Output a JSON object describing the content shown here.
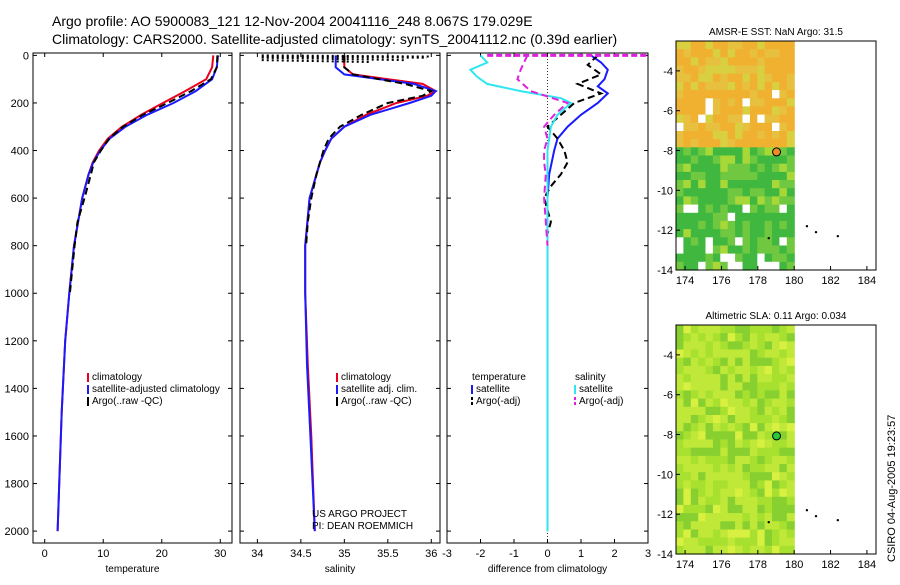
{
  "header": {
    "line1": "Argo profile: AO 5900083_121 12-Nov-2004 20041116_248 8.067S 179.029E",
    "line2": "Climatology: CARS2000. Satellite-adjusted climatology: synTS_20041112.nc (0.39d earlier)"
  },
  "side_label": "CSIRO 04-Aug-2005 19:23:57",
  "credit": {
    "line1": "US ARGO PROJECT",
    "line2": "PI: DEAN ROEMMICH"
  },
  "colors": {
    "red": "#e8001c",
    "blue": "#1a1aff",
    "black": "#000000",
    "cyan": "#2ee6f0",
    "magenta": "#e020e0"
  },
  "chart_data": [
    {
      "type": "line",
      "panel": "temperature",
      "xlabel": "temperature",
      "xlim": [
        -2,
        32
      ],
      "xticks": [
        0,
        10,
        20,
        30
      ],
      "ylim": [
        2050,
        0
      ],
      "yticks": [
        0,
        200,
        400,
        600,
        800,
        1000,
        1200,
        1400,
        1600,
        1800,
        2000
      ],
      "legend": [
        "climatology",
        "satellite-adjusted climatology",
        "Argo(..raw -QC)"
      ],
      "series": [
        {
          "name": "climatology",
          "color": "red",
          "depth": [
            0,
            50,
            100,
            150,
            200,
            250,
            300,
            350,
            400,
            450,
            500,
            600,
            800,
            1000,
            1200,
            1500,
            2000
          ],
          "values": [
            28.8,
            28.6,
            27.6,
            24.0,
            20.2,
            16.5,
            13.2,
            10.8,
            9.3,
            8.2,
            7.5,
            6.4,
            5.0,
            4.2,
            3.5,
            2.9,
            2.2
          ]
        },
        {
          "name": "satellite-adjusted climatology",
          "color": "blue",
          "depth": [
            0,
            50,
            100,
            150,
            200,
            250,
            300,
            350,
            400,
            450,
            500,
            600,
            800,
            1000,
            1200,
            1500,
            2000
          ],
          "values": [
            29.6,
            29.4,
            28.6,
            25.8,
            22.0,
            17.5,
            13.8,
            11.1,
            9.5,
            8.3,
            7.5,
            6.4,
            5.0,
            4.2,
            3.5,
            2.9,
            2.2
          ]
        },
        {
          "name": "Argo(..raw -QC)",
          "color": "black",
          "dash": true,
          "depth": [
            0,
            50,
            100,
            150,
            200,
            250,
            300,
            350,
            400,
            450,
            500,
            600,
            700,
            800,
            900,
            1000
          ],
          "values": [
            29.5,
            29.4,
            28.4,
            25.0,
            21.0,
            16.8,
            13.4,
            11.0,
            9.6,
            8.4,
            7.9,
            6.8,
            5.6,
            5.1,
            4.7,
            4.3
          ]
        }
      ]
    },
    {
      "type": "line",
      "panel": "salinity",
      "xlabel": "salinity",
      "xlim": [
        33.8,
        36.1
      ],
      "xticks": [
        34,
        34.5,
        35,
        35.5,
        36
      ],
      "ylim": [
        2050,
        0
      ],
      "legend": [
        "climatology",
        "satellite adj. clim.",
        "Argo(..raw -QC)"
      ],
      "series": [
        {
          "name": "climatology",
          "color": "red",
          "depth": [
            0,
            50,
            80,
            120,
            150,
            170,
            200,
            250,
            300,
            350,
            400,
            450,
            500,
            600,
            800,
            1000,
            1300,
            1600,
            2000
          ],
          "values": [
            35.0,
            35.0,
            35.1,
            35.9,
            36.05,
            35.95,
            35.6,
            35.25,
            35.0,
            34.85,
            34.78,
            34.72,
            34.68,
            34.6,
            34.55,
            34.55,
            34.58,
            34.62,
            34.66
          ]
        },
        {
          "name": "satellite adj. clim.",
          "color": "blue",
          "depth": [
            0,
            50,
            80,
            120,
            150,
            170,
            200,
            250,
            300,
            350,
            400,
            450,
            500,
            600,
            800,
            1000,
            1300,
            1600,
            2000
          ],
          "values": [
            34.9,
            34.9,
            35.0,
            35.8,
            36.05,
            36.0,
            35.75,
            35.3,
            35.0,
            34.85,
            34.78,
            34.72,
            34.68,
            34.6,
            34.55,
            34.55,
            34.57,
            34.61,
            34.66
          ]
        },
        {
          "name": "Argo(..raw -QC)",
          "color": "black",
          "dash": true,
          "depth": [
            0,
            50,
            80,
            120,
            150,
            170,
            200,
            250,
            300,
            350,
            400,
            450,
            500,
            600,
            700,
            800
          ],
          "values": [
            35.0,
            35.0,
            35.1,
            35.7,
            36.0,
            35.9,
            35.5,
            35.2,
            34.95,
            34.82,
            34.76,
            34.72,
            34.68,
            34.62,
            34.58,
            34.56
          ]
        }
      ]
    },
    {
      "type": "line",
      "panel": "difference",
      "xlabel": "difference from climatology",
      "xlim": [
        -3,
        3
      ],
      "xticks": [
        -3,
        -2,
        -1,
        0,
        1,
        2,
        3
      ],
      "ylim": [
        2050,
        0
      ],
      "legend": [
        "temperature",
        "satellite",
        "Argo(-adj)",
        "salinity",
        "satellite",
        "Argo(-adj)"
      ],
      "series": [
        {
          "name": "temperature satellite",
          "color": "blue",
          "depth": [
            0,
            30,
            60,
            100,
            130,
            160,
            200,
            250,
            300,
            350,
            400,
            500,
            600,
            800,
            1000,
            1500,
            2000
          ],
          "values": [
            1.3,
            1.6,
            1.8,
            1.7,
            1.5,
            1.8,
            1.5,
            1.0,
            0.6,
            0.3,
            0.2,
            0.05,
            0,
            0,
            0,
            0,
            0
          ]
        },
        {
          "name": "temperature Argo(-adj)",
          "color": "black",
          "dash": true,
          "depth": [
            0,
            40,
            80,
            120,
            160,
            200,
            250,
            300,
            350,
            400,
            450,
            500,
            550,
            600,
            650,
            700,
            750,
            800
          ],
          "values": [
            1.5,
            1.2,
            1.6,
            0.9,
            1.6,
            0.8,
            0.4,
            0.0,
            0.3,
            0.5,
            0.6,
            0.4,
            0.1,
            -0.1,
            0.0,
            0.1,
            0.0,
            0.0
          ]
        },
        {
          "name": "salinity satellite",
          "color": "cyan",
          "depth": [
            0,
            30,
            60,
            90,
            120,
            150,
            180,
            200,
            250,
            300,
            400,
            500,
            600,
            800,
            1000,
            1500,
            2000
          ],
          "values": [
            -2.0,
            -1.8,
            -2.3,
            -2.1,
            -1.8,
            -0.8,
            0.4,
            0.7,
            0.3,
            0.1,
            0,
            0,
            0,
            0,
            0,
            0,
            0
          ]
        },
        {
          "name": "salinity Argo(-adj)",
          "color": "magenta",
          "dash": true,
          "depth": [
            0,
            30,
            60,
            100,
            150,
            200,
            250,
            300,
            350,
            400,
            450,
            500,
            600,
            700,
            800
          ],
          "values": [
            -0.6,
            -0.7,
            -0.8,
            -0.9,
            -0.5,
            0.6,
            0.2,
            -0.1,
            0.0,
            -0.1,
            -0.1,
            -0.05,
            -0.1,
            -0.05,
            0.0
          ]
        }
      ]
    },
    {
      "type": "heatmap",
      "panel": "map-top",
      "title": "AMSR-E SST: NaN Argo: 31.5",
      "xlim": [
        173.5,
        184.5
      ],
      "xticks": [
        174,
        176,
        178,
        180,
        182,
        184
      ],
      "ylim": [
        -14,
        -2.5
      ],
      "yticks": [
        -14,
        -12,
        -10,
        -8,
        -6,
        -4
      ],
      "argo_point": {
        "lon": 179.03,
        "lat": -8.07,
        "color": "#f08c28"
      }
    },
    {
      "type": "heatmap",
      "panel": "map-bottom",
      "title": "Altimetric SLA: 0.11 Argo: 0.034",
      "xlim": [
        173.5,
        184.5
      ],
      "xticks": [
        174,
        176,
        178,
        180,
        182,
        184
      ],
      "ylim": [
        -14,
        -2.5
      ],
      "yticks": [
        -14,
        -12,
        -10,
        -8,
        -6,
        -4
      ],
      "argo_point": {
        "lon": 179.03,
        "lat": -8.07,
        "color": "#28c83c"
      }
    }
  ]
}
